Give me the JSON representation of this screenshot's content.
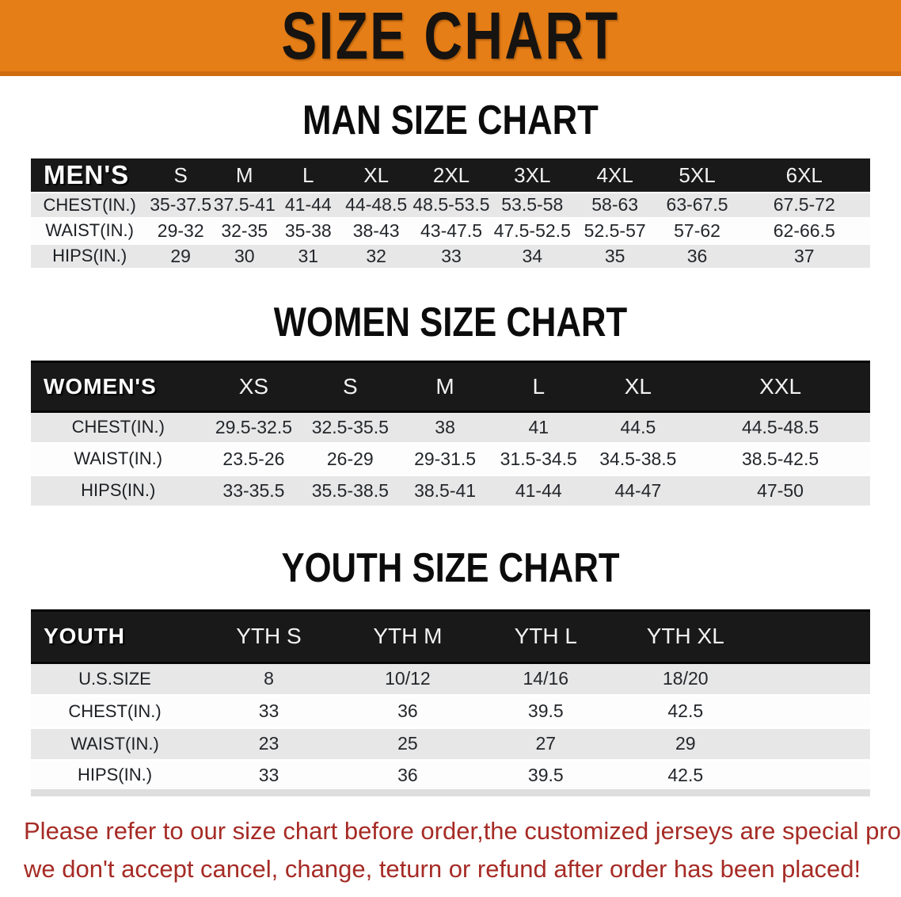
{
  "banner": {
    "title": "SIZE CHART"
  },
  "colors": {
    "banner_bg": "#e67e17",
    "banner_edge": "#cf6c10",
    "header_bar": "#191919",
    "row_gray": "#e7e7e7",
    "disclaimer_red": "#a62b25"
  },
  "sections": [
    {
      "title": "MAN SIZE CHART",
      "label": "MEN'S",
      "columns": [
        "S",
        "M",
        "L",
        "XL",
        "2XL",
        "3XL",
        "4XL",
        "5XL",
        "6XL"
      ],
      "rows": [
        {
          "label": "CHEST(IN.)",
          "values": [
            "35-37.5",
            "37.5-41",
            "41-44",
            "44-48.5",
            "48.5-53.5",
            "53.5-58",
            "58-63",
            "63-67.5",
            "67.5-72"
          ]
        },
        {
          "label": "WAIST(IN.)",
          "values": [
            "29-32",
            "32-35",
            "35-38",
            "38-43",
            "43-47.5",
            "47.5-52.5",
            "52.5-57",
            "57-62",
            "62-66.5"
          ]
        },
        {
          "label": "HIPS(IN.)",
          "values": [
            "29",
            "30",
            "31",
            "32",
            "33",
            "34",
            "35",
            "36",
            "37"
          ]
        }
      ]
    },
    {
      "title": "WOMEN SIZE CHART",
      "label": "WOMEN'S",
      "columns": [
        "XS",
        "S",
        "M",
        "L",
        "XL",
        "XXL"
      ],
      "rows": [
        {
          "label": "CHEST(IN.)",
          "values": [
            "29.5-32.5",
            "32.5-35.5",
            "38",
            "41",
            "44.5",
            "44.5-48.5"
          ]
        },
        {
          "label": "WAIST(IN.)",
          "values": [
            "23.5-26",
            "26-29",
            "29-31.5",
            "31.5-34.5",
            "34.5-38.5",
            "38.5-42.5"
          ]
        },
        {
          "label": "HIPS(IN.)",
          "values": [
            "33-35.5",
            "35.5-38.5",
            "38.5-41",
            "41-44",
            "44-47",
            "47-50"
          ]
        }
      ]
    },
    {
      "title": "YOUTH SIZE CHART",
      "label": "YOUTH",
      "columns": [
        "YTH S",
        "YTH M",
        "YTH L",
        "YTH XL"
      ],
      "rows": [
        {
          "label": "U.S.SIZE",
          "values": [
            "8",
            "10/12",
            "14/16",
            "18/20"
          ]
        },
        {
          "label": "CHEST(IN.)",
          "values": [
            "33",
            "36",
            "39.5",
            "42.5"
          ]
        },
        {
          "label": "WAIST(IN.)",
          "values": [
            "23",
            "25",
            "27",
            "29"
          ]
        },
        {
          "label": "HIPS(IN.)",
          "values": [
            "33",
            "36",
            "39.5",
            "42.5"
          ]
        }
      ]
    }
  ],
  "disclaimer": {
    "line1": "Please refer to our size chart before order,the customized jerseys are special products,",
    "line2": "we don't accept cancel, change, teturn or refund after order has been placed!"
  }
}
